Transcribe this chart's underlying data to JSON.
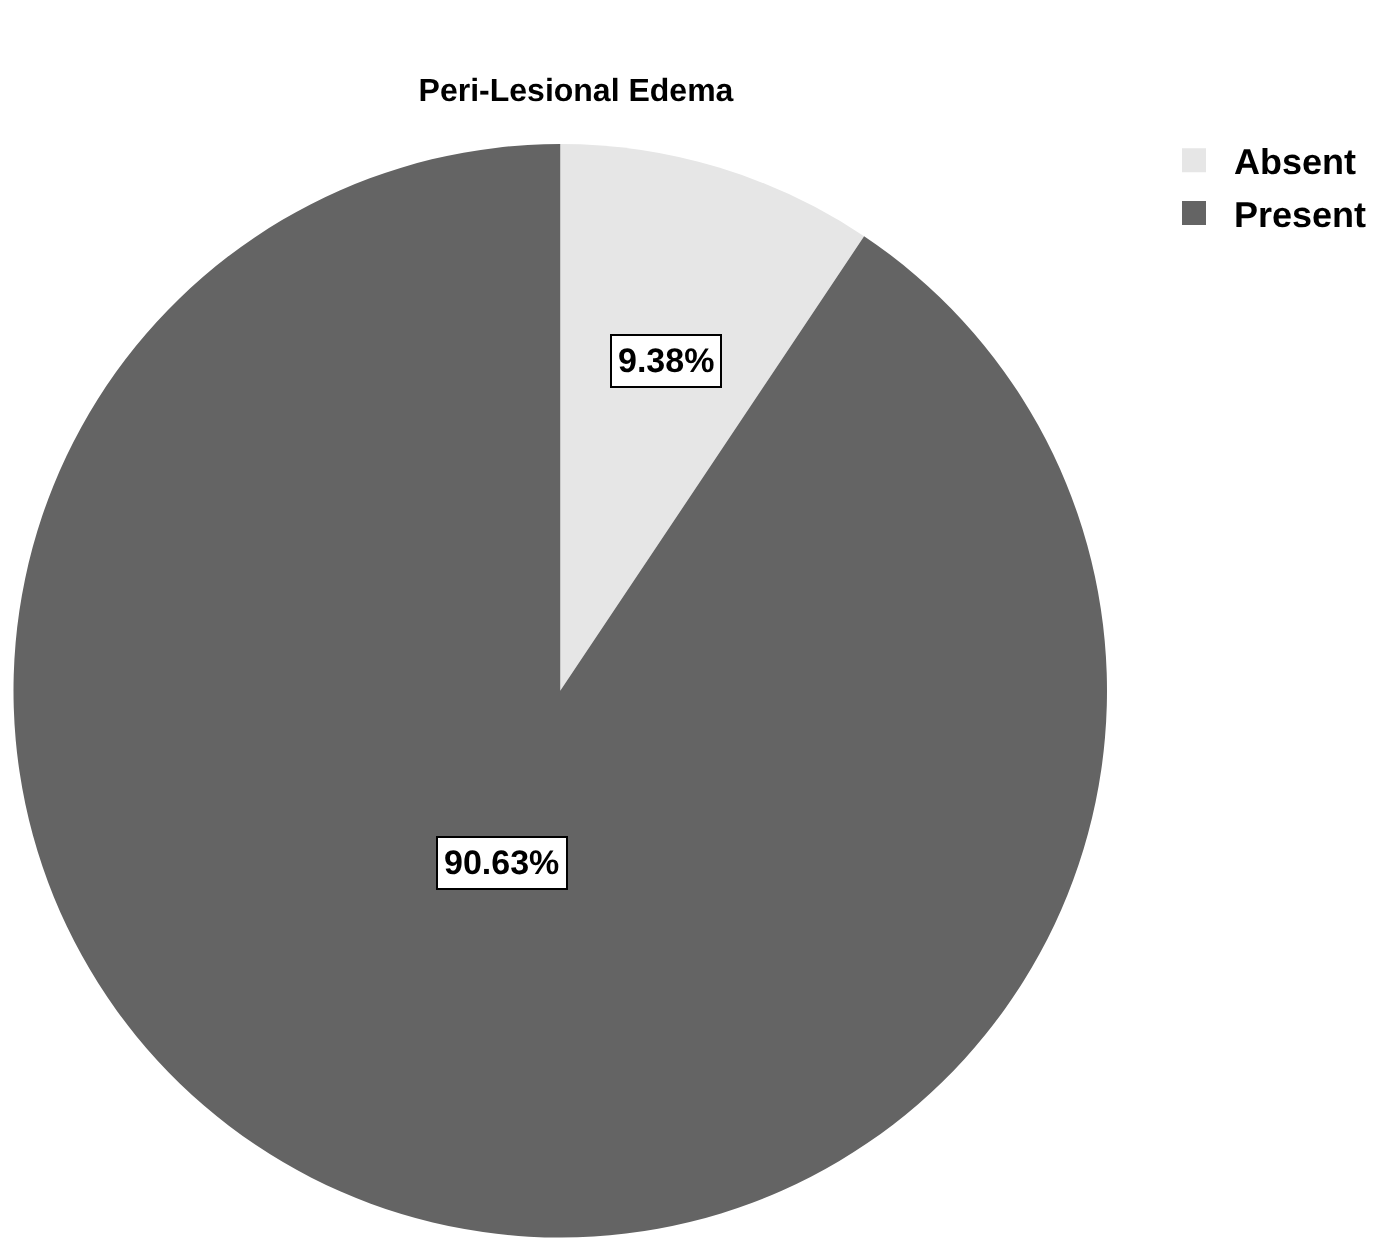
{
  "chart_data": {
    "type": "pie",
    "title": "Peri-Lesional Edema",
    "categories": [
      "Absent",
      "Present"
    ],
    "values": [
      9.38,
      90.63
    ],
    "colors": [
      "#e6e6e6",
      "#646464"
    ],
    "value_labels": [
      "9.38%",
      "90.63%"
    ],
    "legend": "top right"
  }
}
